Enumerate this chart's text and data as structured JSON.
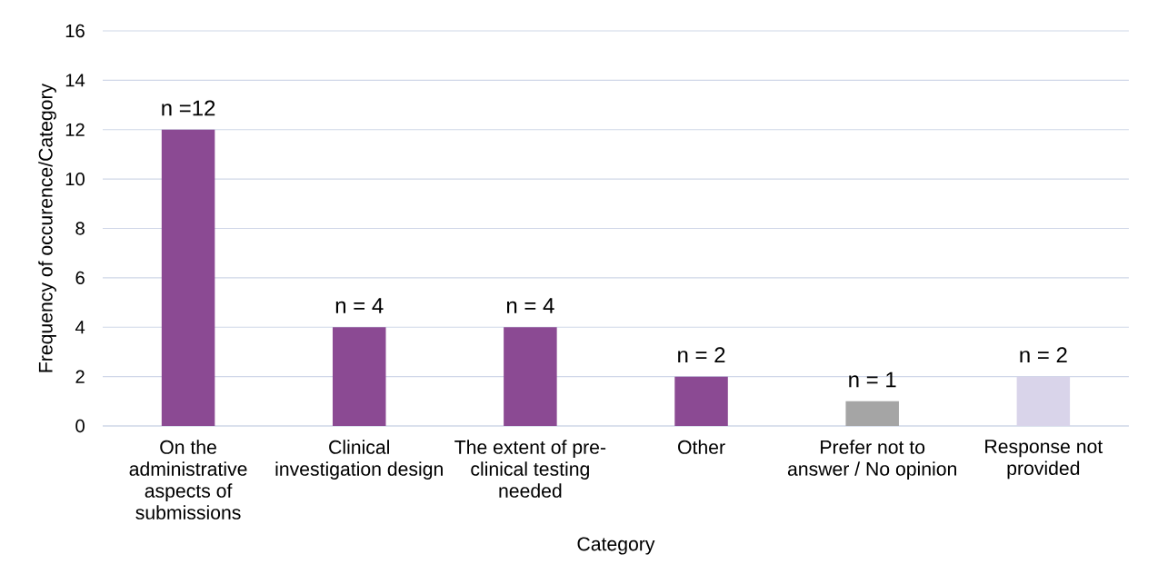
{
  "chart_data": {
    "type": "bar",
    "xlabel": "Category",
    "ylabel": "Frequency of occurence/Category",
    "categories": [
      "On the administrative aspects of submissions",
      "Clinical investigation design",
      "The extent of pre-clinical testing needed",
      "Other",
      "Prefer not to answer / No opinion",
      "Response not provided"
    ],
    "values": [
      12,
      4,
      4,
      2,
      1,
      2
    ],
    "colors": [
      "#8b4a93",
      "#8b4a93",
      "#8b4a93",
      "#8b4a93",
      "#a5a5a5",
      "#d9d4ea"
    ],
    "value_labels": [
      "n =12",
      "n = 4",
      "n = 4",
      "n = 2",
      "n = 1",
      "n = 2"
    ],
    "ylim": [
      0,
      16
    ],
    "yticks": [
      0,
      2,
      4,
      6,
      8,
      10,
      12,
      14,
      16
    ],
    "grid": "y"
  }
}
